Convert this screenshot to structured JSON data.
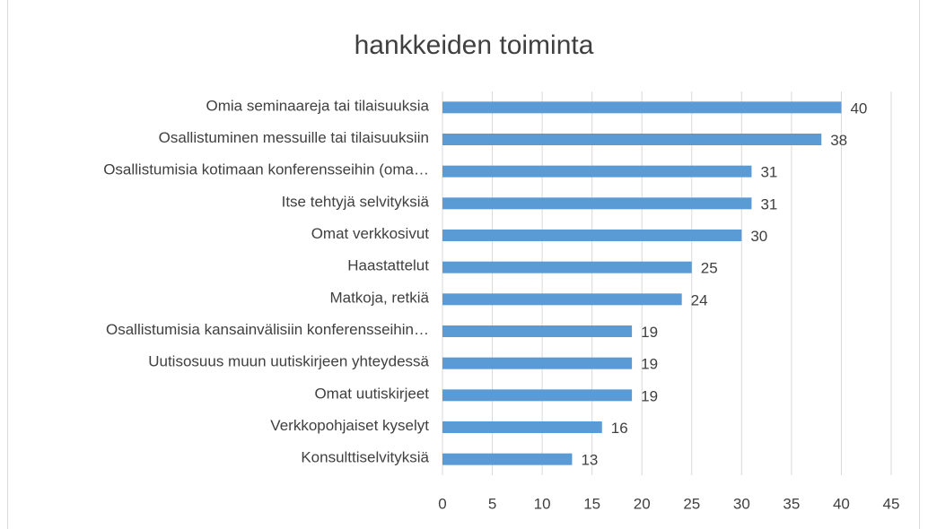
{
  "chart_data": {
    "type": "barh",
    "title": "hankkeiden toiminta",
    "categories": [
      "Omia seminaareja tai tilaisuuksia",
      "Osallistuminen messuille tai tilaisuuksiin",
      "Osallistumisia kotimaan konferensseihin (oma…",
      "Itse tehtyjä selvityksiä",
      "Omat verkkosivut",
      "Haastattelut",
      "Matkoja, retkiä",
      "Osallistumisia kansainvälisiin konferensseihin…",
      "Uutisosuus muun uutiskirjeen yhteydessä",
      "Omat uutiskirjeet",
      "Verkkopohjaiset kyselyt",
      "Konsulttiselvityksiä"
    ],
    "values": [
      40,
      38,
      31,
      31,
      30,
      25,
      24,
      19,
      19,
      19,
      16,
      13
    ],
    "color": "#5b9bd5",
    "xlim": [
      0,
      45
    ],
    "xticks": [
      0,
      5,
      10,
      15,
      20,
      25,
      30,
      35,
      40,
      45
    ],
    "grid": true
  }
}
